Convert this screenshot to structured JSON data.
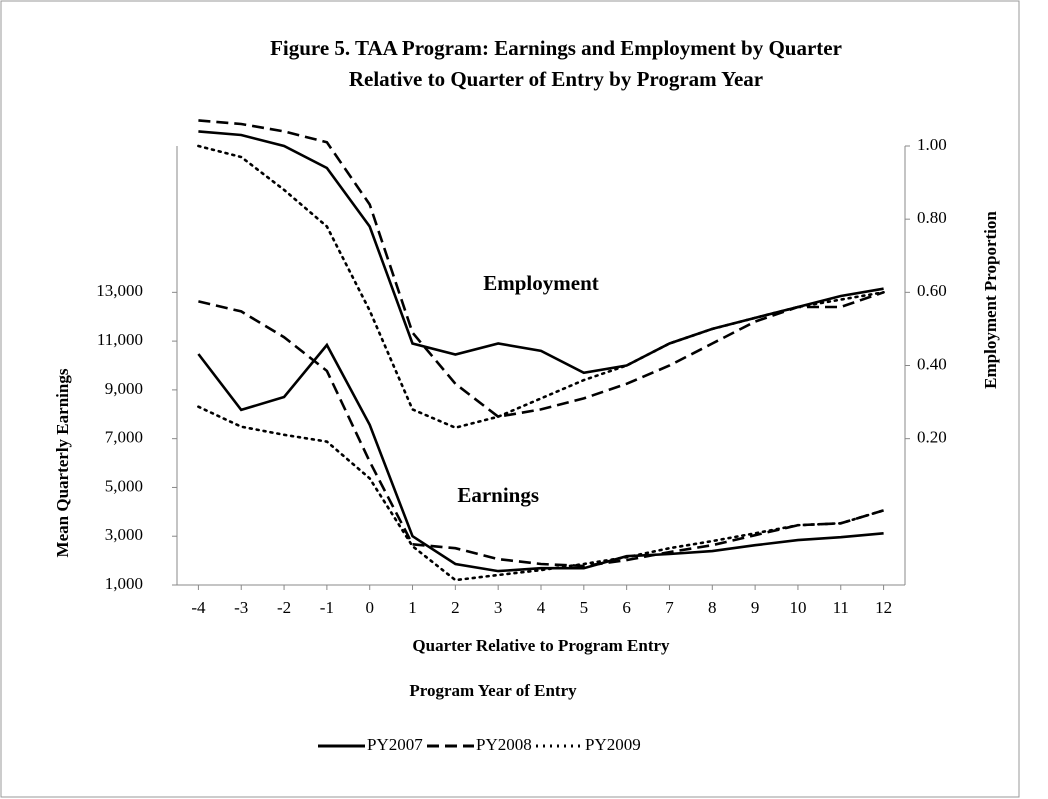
{
  "chart_data": {
    "type": "line",
    "title": [
      "Figure  5.  TAA Program: Earnings and Employment  by Quarter",
      "Relative to Quarter of Entry  by Program Year"
    ],
    "x_label": "Quarter  Relative to Program  Entry",
    "y_label": "Mean Quarterly  Earnings",
    "y2_label": "Employment  Proportion",
    "legend_title": "Program  Year of Entry",
    "annotations": [
      {
        "text": "Employment",
        "x": 4,
        "y2": 0.62
      },
      {
        "text": "Earnings",
        "x": 3,
        "y": 4600
      }
    ],
    "x": [
      -4,
      -3,
      -2,
      -1,
      0,
      1,
      2,
      3,
      4,
      5,
      6,
      7,
      8,
      9,
      10,
      11,
      12
    ],
    "xlim": [
      -4.5,
      12.5
    ],
    "ylim": [
      1000,
      19000
    ],
    "yticks": [
      {
        "value": 1000,
        "label": "1,000"
      },
      {
        "value": 3000,
        "label": "3,000"
      },
      {
        "value": 5000,
        "label": "5,000"
      },
      {
        "value": 7000,
        "label": "7,000"
      },
      {
        "value": 9000,
        "label": "9,000"
      },
      {
        "value": 11000,
        "label": "11,000"
      },
      {
        "value": 13000,
        "label": "13,000"
      }
    ],
    "y2lim": [
      -0.2,
      1.0
    ],
    "y2ticks": [
      {
        "value": 0.2,
        "label": "0.20"
      },
      {
        "value": 0.4,
        "label": "0.40"
      },
      {
        "value": 0.6,
        "label": "0.60"
      },
      {
        "value": 0.8,
        "label": "0.80"
      },
      {
        "value": 1.0,
        "label": "1.00"
      }
    ],
    "series": [
      {
        "name": "PY2007",
        "color": "#000000",
        "dash": "solid",
        "values": [
          10470,
          8180,
          8710,
          10840,
          7570,
          3000,
          1860,
          1570,
          1690,
          1690,
          2180,
          2270,
          2390,
          2630,
          2840,
          2960,
          3120
        ],
        "y2_values": [
          1.04,
          1.03,
          1.0,
          0.94,
          0.78,
          0.46,
          0.43,
          0.46,
          0.44,
          0.38,
          0.4,
          0.46,
          0.5,
          0.53,
          0.56,
          0.59,
          0.61
        ]
      },
      {
        "name": "PY2008",
        "color": "#000000",
        "dash": "dashed",
        "values": [
          12630,
          12220,
          11160,
          9780,
          6060,
          2670,
          2510,
          2060,
          1860,
          1780,
          2020,
          2350,
          2630,
          3040,
          3450,
          3530,
          4060
        ],
        "y2_values": [
          1.07,
          1.06,
          1.04,
          1.01,
          0.84,
          0.49,
          0.35,
          0.26,
          0.28,
          0.31,
          0.35,
          0.4,
          0.46,
          0.52,
          0.56,
          0.56,
          0.6
        ]
      },
      {
        "name": "PY2009",
        "color": "#000000",
        "dash": "dotted",
        "values": [
          8310,
          7490,
          7160,
          6880,
          5370,
          2590,
          1200,
          1410,
          1610,
          1860,
          2140,
          2510,
          2800,
          3120,
          3450,
          3530,
          4060
        ],
        "y2_values": [
          1.0,
          0.97,
          0.88,
          0.78,
          0.55,
          0.28,
          0.23,
          0.26,
          0.31,
          0.36,
          0.4,
          0.46,
          0.5,
          0.53,
          0.56,
          0.58,
          0.6
        ]
      }
    ]
  }
}
